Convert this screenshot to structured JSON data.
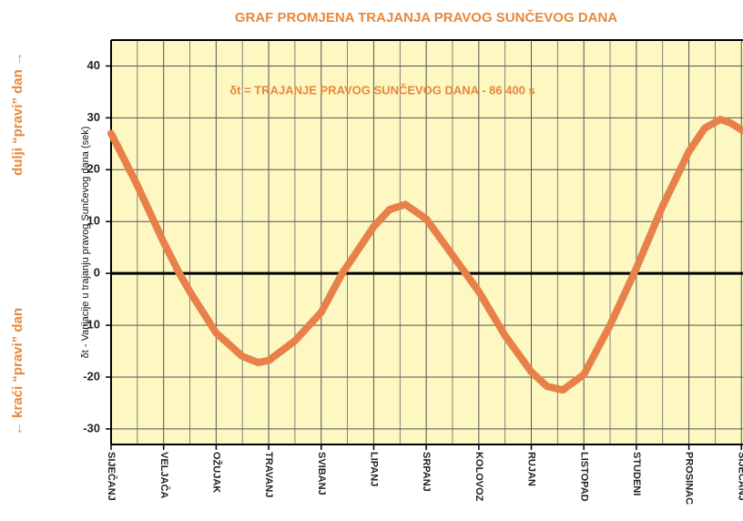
{
  "chart_data": {
    "type": "line",
    "title": "GRAF PROMJENA TRAJANJA PRAVOG SUNČEVOG DANA",
    "annotation": "δt = TRAJANJE PRAVOG SUNČEVOG DANA - 86 400 s",
    "y_label": "δt - Varijacije u trajanju pravog Sunčevog dana (sek)",
    "side_label_top": "dulji “pravi” dan →",
    "side_label_bottom": "← kraći “pravi” dan",
    "x": [
      0,
      0.5,
      1,
      1.3,
      1.5,
      2,
      2.5,
      2.8,
      3,
      3.5,
      4,
      4.4,
      5,
      5.3,
      5.6,
      6,
      6.5,
      7,
      7.5,
      8,
      8.3,
      8.6,
      9,
      9.5,
      10,
      10.5,
      11,
      11.3,
      11.6,
      11.8,
      12.03
    ],
    "series": [
      {
        "name": "δt",
        "color": "#e8804a",
        "values": [
          27,
          17,
          6,
          0,
          -3.5,
          -11.5,
          -16,
          -17.2,
          -16.8,
          -13,
          -7.5,
          0,
          9,
          12.3,
          13.3,
          10.5,
          3.5,
          -3.5,
          -12,
          -19,
          -21.8,
          -22.5,
          -19.5,
          -10,
          1,
          13,
          23.5,
          28,
          29.7,
          29,
          27.5
        ]
      }
    ],
    "xlim": [
      0,
      12.03
    ],
    "xticks": [
      {
        "value": 0,
        "label": "SIJEČANJ"
      },
      {
        "value": 1,
        "label": "VELJAČA"
      },
      {
        "value": 2,
        "label": "OŽUJAK"
      },
      {
        "value": 3,
        "label": "TRAVANJ"
      },
      {
        "value": 4,
        "label": "SVIBANJ"
      },
      {
        "value": 5,
        "label": "LIPANJ"
      },
      {
        "value": 6,
        "label": "SRPANJ"
      },
      {
        "value": 7,
        "label": "KOLOVOZ"
      },
      {
        "value": 8,
        "label": "RUJAN"
      },
      {
        "value": 9,
        "label": "LISTOPAD"
      },
      {
        "value": 10,
        "label": "STUDENI"
      },
      {
        "value": 11,
        "label": "PROSINAC"
      },
      {
        "value": 12,
        "label": "SIJEČANJ"
      }
    ],
    "xminorticks": [
      0.5,
      1.5,
      2.5,
      3.5,
      4.5,
      5.5,
      6.5,
      7.5,
      8.5,
      9.5,
      10.5,
      11.5
    ],
    "ylim": [
      -33,
      45
    ],
    "yticks": [
      -30,
      -20,
      -10,
      0,
      10,
      20,
      30,
      40
    ],
    "grid": true
  }
}
